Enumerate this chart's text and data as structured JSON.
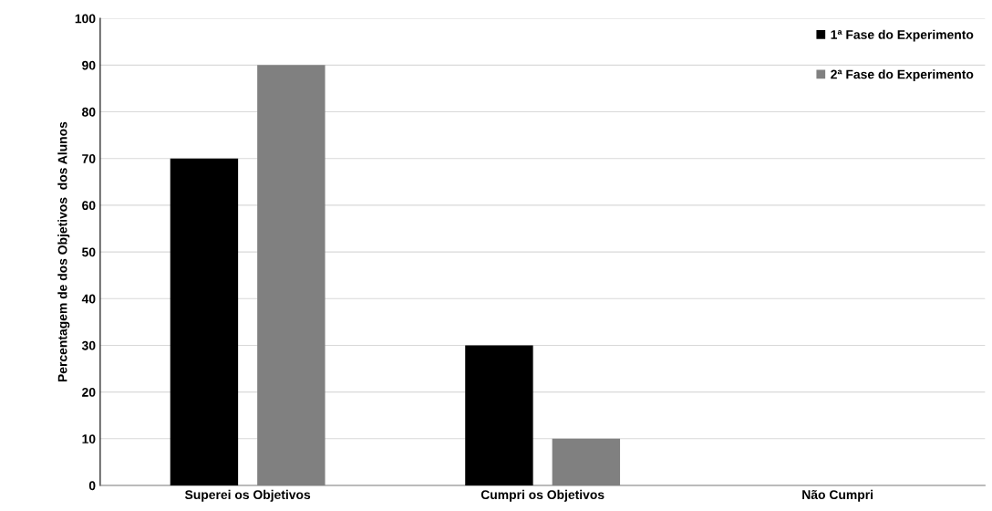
{
  "chart_data": {
    "type": "bar",
    "ylabel": "Percentagem de dos Objetivos  dos Alunos",
    "categories": [
      "Superei os Objetivos",
      "Cumpri os Objetivos",
      "Não Cumpri"
    ],
    "series": [
      {
        "name": "1ª Fase do Experimento",
        "color": "#000000",
        "values": [
          70,
          30,
          0
        ]
      },
      {
        "name": "2ª Fase do Experimento",
        "color": "#808080",
        "values": [
          90,
          10,
          0
        ]
      }
    ],
    "ylim": [
      0,
      100
    ],
    "yticks": [
      0,
      10,
      20,
      30,
      40,
      50,
      60,
      70,
      80,
      90,
      100
    ],
    "grid": "y",
    "legend": "top right"
  }
}
